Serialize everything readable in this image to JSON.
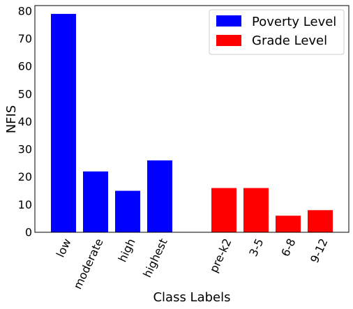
{
  "chart_data": {
    "type": "bar",
    "xlabel": "Class Labels",
    "ylabel": "NFIS",
    "ylim": [
      0,
      82
    ],
    "yticks": [
      0,
      10,
      20,
      30,
      40,
      50,
      60,
      70,
      80
    ],
    "grid": false,
    "legend_position": "top-right",
    "series": [
      {
        "name": "Poverty Level",
        "color": "#0000ff",
        "categories": [
          "low",
          "moderate",
          "high",
          "highest"
        ],
        "values": [
          79,
          22,
          15,
          26
        ]
      },
      {
        "name": "Grade Level",
        "color": "#ff0000",
        "categories": [
          "pre-k2",
          "3-5",
          "6-8",
          "9-12"
        ],
        "values": [
          16,
          16,
          6,
          8
        ]
      }
    ]
  }
}
